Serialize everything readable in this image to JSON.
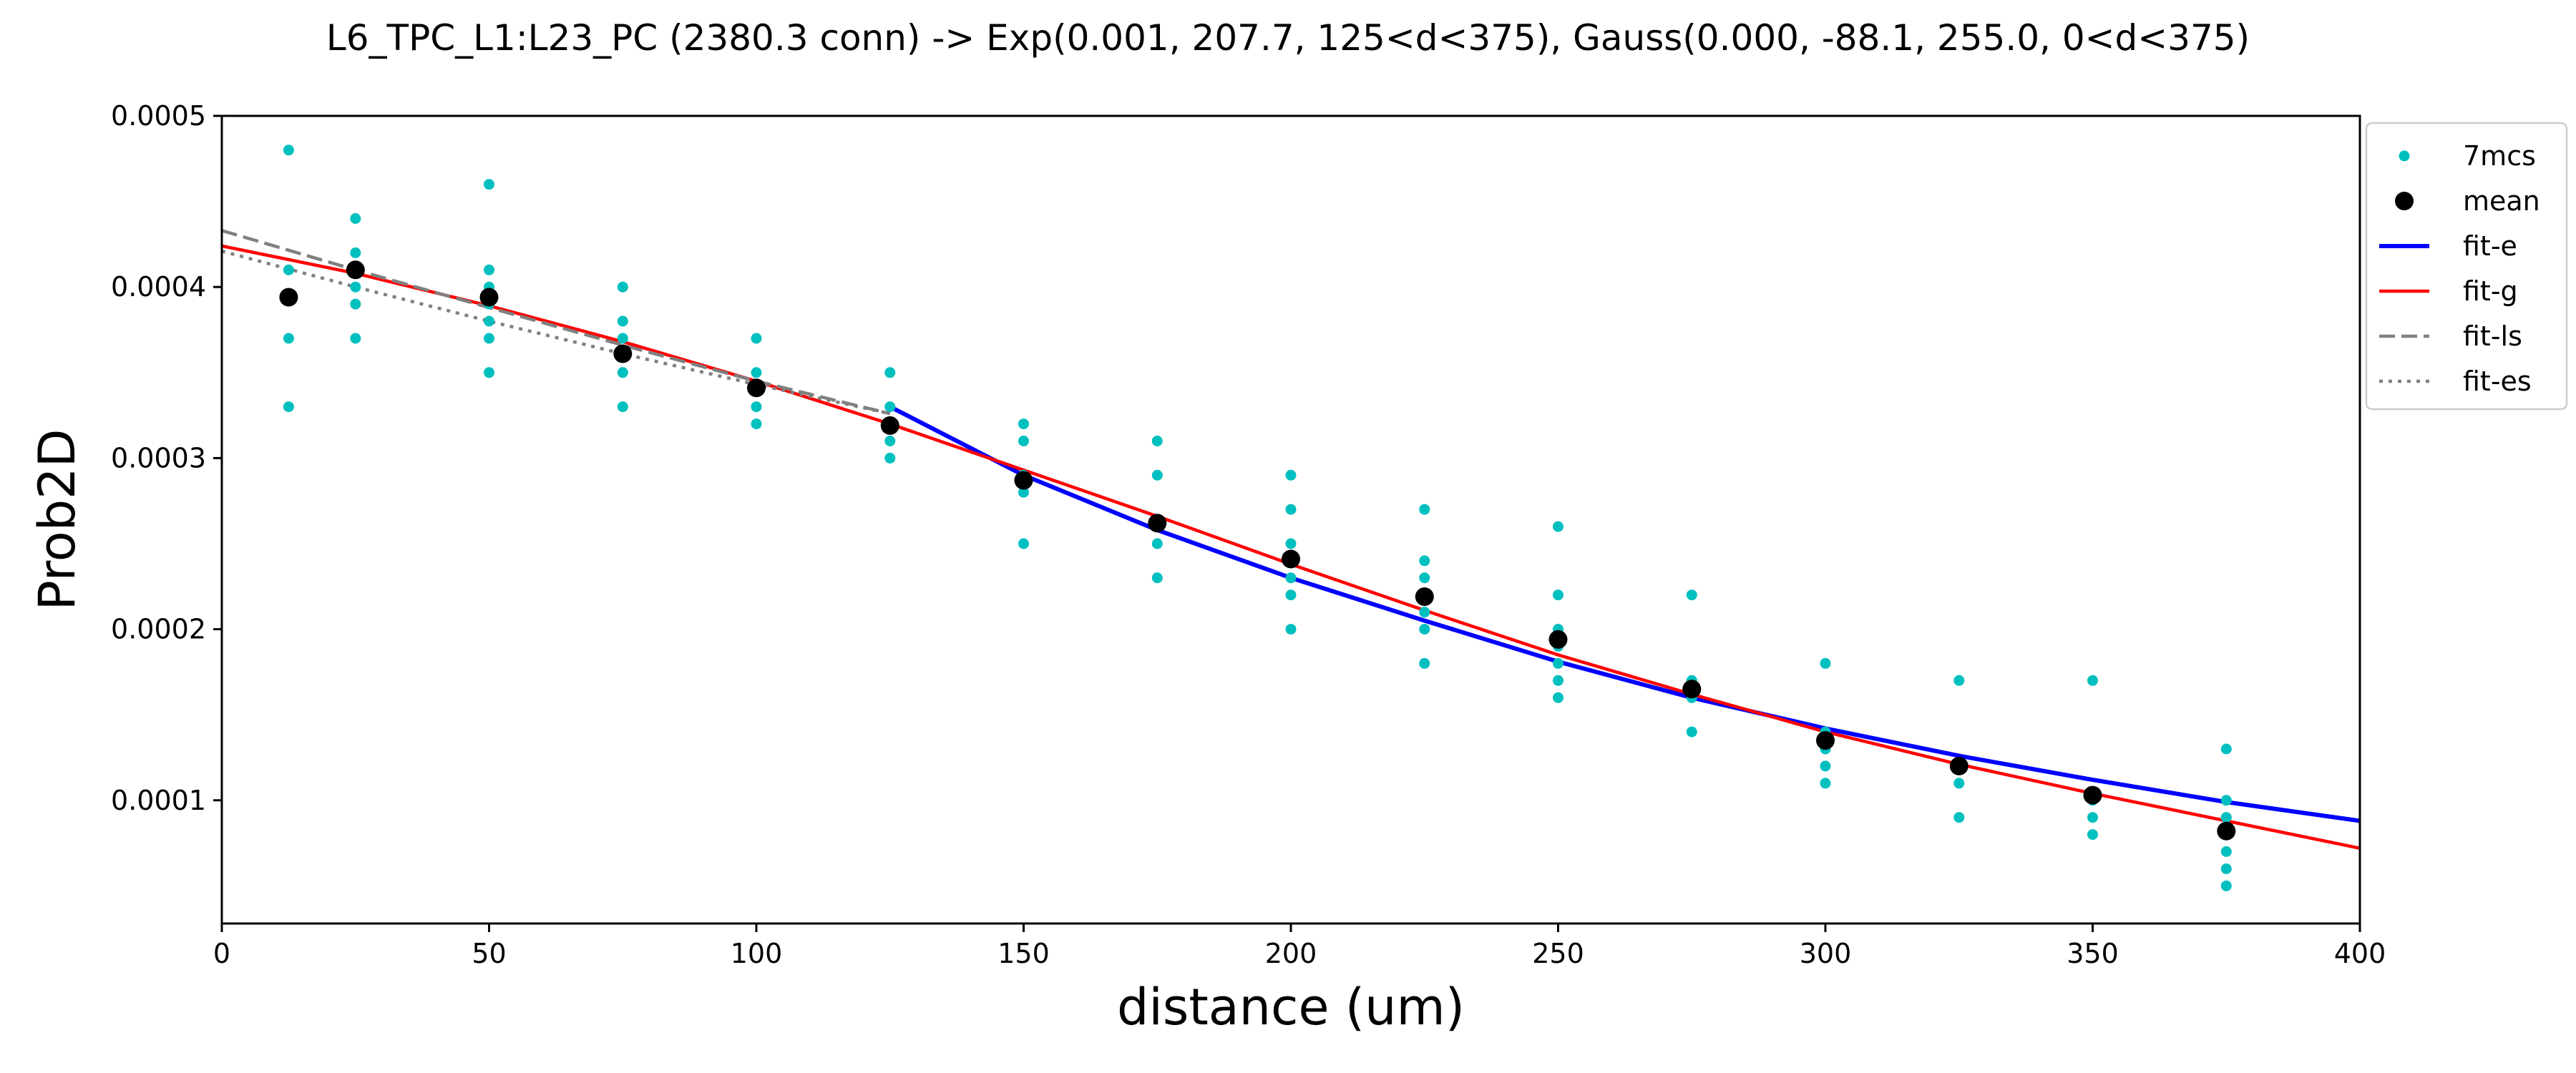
{
  "chart_data": {
    "type": "scatter",
    "title": "L6_TPC_L1:L23_PC (2380.3 conn) -> Exp(0.001, 207.7, 125<d<375), Gauss(0.000, -88.1, 255.0, 0<d<375)",
    "xlabel": "distance (um)",
    "ylabel": "Prob2D",
    "xlim": [
      0,
      400
    ],
    "ylim": [
      2.8e-05,
      0.0005
    ],
    "x_ticks": [
      0,
      50,
      100,
      150,
      200,
      250,
      300,
      350,
      400
    ],
    "x_tick_labels": [
      "0",
      "50",
      "100",
      "150",
      "200",
      "250",
      "300",
      "350",
      "400"
    ],
    "y_ticks": [
      0.0001,
      0.0002,
      0.0003,
      0.0004,
      0.0005
    ],
    "y_tick_labels": [
      "0.0001",
      "0.0002",
      "0.0003",
      "0.0004",
      "0.0005"
    ],
    "grid": false,
    "legend_position": "outside top-right",
    "series": [
      {
        "name": "7mcs",
        "kind": "points",
        "color": "#00bfbf",
        "points": [
          [
            12.5,
            0.00048
          ],
          [
            12.5,
            0.00041
          ],
          [
            12.5,
            0.000395
          ],
          [
            12.5,
            0.00037
          ],
          [
            12.5,
            0.00033
          ],
          [
            25,
            0.00044
          ],
          [
            25,
            0.00042
          ],
          [
            25,
            0.00041
          ],
          [
            25,
            0.0004
          ],
          [
            25,
            0.00039
          ],
          [
            25,
            0.00037
          ],
          [
            50,
            0.00046
          ],
          [
            50,
            0.00041
          ],
          [
            50,
            0.0004
          ],
          [
            50,
            0.00039
          ],
          [
            50,
            0.00038
          ],
          [
            50,
            0.00037
          ],
          [
            50,
            0.00035
          ],
          [
            75,
            0.0004
          ],
          [
            75,
            0.00038
          ],
          [
            75,
            0.00037
          ],
          [
            75,
            0.00036
          ],
          [
            75,
            0.00035
          ],
          [
            75,
            0.00033
          ],
          [
            100,
            0.00037
          ],
          [
            100,
            0.00035
          ],
          [
            100,
            0.00034
          ],
          [
            100,
            0.00033
          ],
          [
            100,
            0.00032
          ],
          [
            125,
            0.00035
          ],
          [
            125,
            0.00033
          ],
          [
            125,
            0.00032
          ],
          [
            125,
            0.00031
          ],
          [
            125,
            0.0003
          ],
          [
            150,
            0.00032
          ],
          [
            150,
            0.00031
          ],
          [
            150,
            0.00029
          ],
          [
            150,
            0.00028
          ],
          [
            150,
            0.00025
          ],
          [
            175,
            0.00031
          ],
          [
            175,
            0.00029
          ],
          [
            175,
            0.00026
          ],
          [
            175,
            0.00025
          ],
          [
            175,
            0.00023
          ],
          [
            200,
            0.00029
          ],
          [
            200,
            0.00027
          ],
          [
            200,
            0.00025
          ],
          [
            200,
            0.00024
          ],
          [
            200,
            0.00023
          ],
          [
            200,
            0.00022
          ],
          [
            200,
            0.0002
          ],
          [
            225,
            0.00027
          ],
          [
            225,
            0.00024
          ],
          [
            225,
            0.00023
          ],
          [
            225,
            0.00022
          ],
          [
            225,
            0.00021
          ],
          [
            225,
            0.0002
          ],
          [
            225,
            0.00018
          ],
          [
            250,
            0.00026
          ],
          [
            250,
            0.00022
          ],
          [
            250,
            0.0002
          ],
          [
            250,
            0.00019
          ],
          [
            250,
            0.00018
          ],
          [
            250,
            0.00017
          ],
          [
            250,
            0.00016
          ],
          [
            275,
            0.00022
          ],
          [
            275,
            0.00017
          ],
          [
            275,
            0.000165
          ],
          [
            275,
            0.00016
          ],
          [
            275,
            0.00014
          ],
          [
            300,
            0.00018
          ],
          [
            300,
            0.00014
          ],
          [
            300,
            0.00013
          ],
          [
            300,
            0.00012
          ],
          [
            300,
            0.00011
          ],
          [
            325,
            0.00017
          ],
          [
            325,
            0.00012
          ],
          [
            325,
            0.00011
          ],
          [
            325,
            9e-05
          ],
          [
            350,
            0.00017
          ],
          [
            350,
            0.0001
          ],
          [
            350,
            9e-05
          ],
          [
            350,
            8e-05
          ],
          [
            375,
            0.00013
          ],
          [
            375,
            0.0001
          ],
          [
            375,
            9e-05
          ],
          [
            375,
            8e-05
          ],
          [
            375,
            7e-05
          ],
          [
            375,
            6e-05
          ],
          [
            375,
            5e-05
          ]
        ]
      },
      {
        "name": "mean",
        "kind": "points",
        "color": "#000000",
        "points": [
          [
            12.5,
            0.000394
          ],
          [
            25,
            0.00041
          ],
          [
            50,
            0.000394
          ],
          [
            75,
            0.000361
          ],
          [
            100,
            0.000341
          ],
          [
            125,
            0.000319
          ],
          [
            150,
            0.000287
          ],
          [
            175,
            0.000262
          ],
          [
            200,
            0.000241
          ],
          [
            225,
            0.000219
          ],
          [
            250,
            0.000194
          ],
          [
            275,
            0.000165
          ],
          [
            300,
            0.000135
          ],
          [
            325,
            0.00012
          ],
          [
            350,
            0.000103
          ],
          [
            375,
            8.2e-05
          ]
        ]
      },
      {
        "name": "fit-e",
        "kind": "line",
        "color": "#0000ff",
        "style": "solid",
        "points": [
          [
            125,
            0.00033
          ],
          [
            150,
            0.00029
          ],
          [
            175,
            0.000258
          ],
          [
            200,
            0.00023
          ],
          [
            225,
            0.000205
          ],
          [
            250,
            0.000181
          ],
          [
            275,
            0.00016
          ],
          [
            300,
            0.000142
          ],
          [
            325,
            0.000126
          ],
          [
            350,
            0.000112
          ],
          [
            375,
            9.9e-05
          ],
          [
            400,
            8.8e-05
          ]
        ]
      },
      {
        "name": "fit-g",
        "kind": "line",
        "color": "#ff0000",
        "style": "solid",
        "points": [
          [
            0,
            0.000424
          ],
          [
            25,
            0.000408
          ],
          [
            50,
            0.000389
          ],
          [
            75,
            0.000368
          ],
          [
            100,
            0.000345
          ],
          [
            125,
            0.00032
          ],
          [
            150,
            0.000293
          ],
          [
            175,
            0.000266
          ],
          [
            200,
            0.000238
          ],
          [
            225,
            0.000211
          ],
          [
            250,
            0.000185
          ],
          [
            275,
            0.000162
          ],
          [
            300,
            0.00014
          ],
          [
            325,
            0.000121
          ],
          [
            350,
            0.000104
          ],
          [
            375,
            8.8e-05
          ],
          [
            400,
            7.2e-05
          ]
        ]
      },
      {
        "name": "fit-ls",
        "kind": "line",
        "color": "#808080",
        "style": "dashed",
        "points": [
          [
            0,
            0.000433
          ],
          [
            25,
            0.00041
          ],
          [
            50,
            0.000388
          ],
          [
            75,
            0.000366
          ],
          [
            100,
            0.000345
          ],
          [
            125,
            0.000326
          ]
        ]
      },
      {
        "name": "fit-es",
        "kind": "line",
        "color": "#808080",
        "style": "dotted",
        "points": [
          [
            0,
            0.000421
          ],
          [
            25,
            0.0004
          ],
          [
            50,
            0.00038
          ],
          [
            75,
            0.000361
          ],
          [
            100,
            0.000343
          ],
          [
            125,
            0.000326
          ]
        ]
      }
    ]
  }
}
